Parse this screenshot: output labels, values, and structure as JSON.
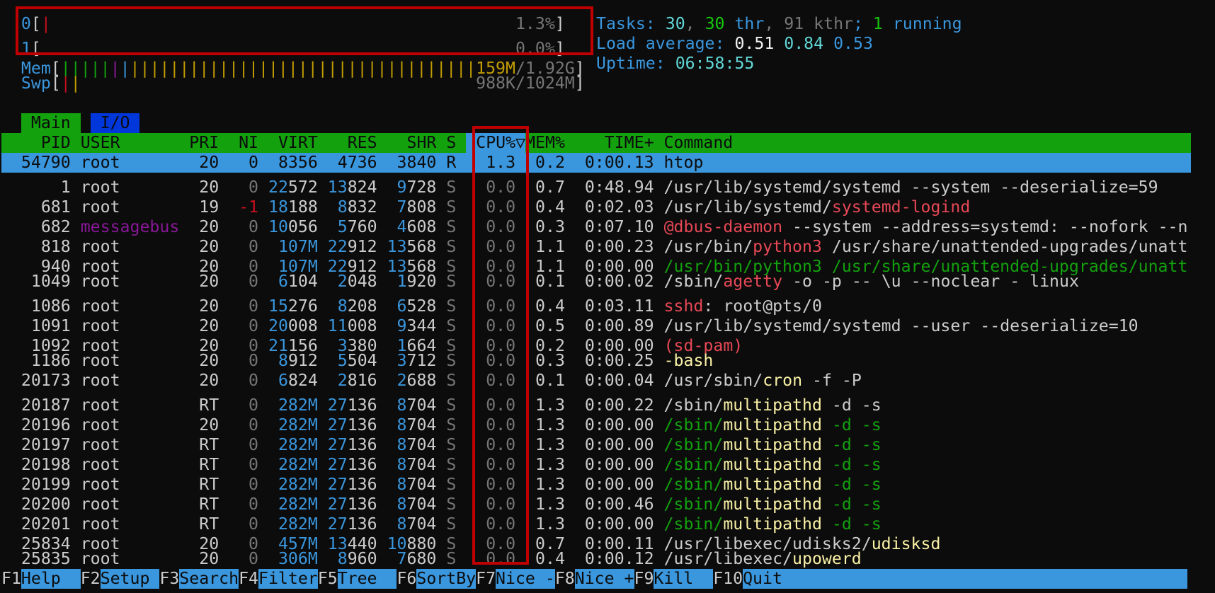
{
  "colors": {
    "bg": "#0c0c0c",
    "white": "#cccccc",
    "bright_white": "#f2f2f2",
    "gray": "#767676",
    "cyan": "#3a96dd",
    "bright_cyan": "#61d6d6",
    "green": "#13a10e",
    "bright_green": "#16c60c",
    "red": "#c50f1f",
    "bright_red": "#e74856",
    "yellow": "#c19c00",
    "bright_yellow": "#f9f1a5",
    "purple": "#881798",
    "blue": "#0037da",
    "black": "#0c0c0c",
    "highlight_box": "#c00000"
  },
  "meters": {
    "cpus": [
      {
        "id": "0",
        "percent": 1.3,
        "label": "1.3%"
      },
      {
        "id": "1",
        "percent": 0.0,
        "label": "0.0%"
      }
    ],
    "mem": {
      "label": "Mem",
      "used": "159M",
      "sep": "/",
      "total": "1.92G",
      "segments": [
        {
          "color": "green",
          "fraction": 0.096
        },
        {
          "color": "purple",
          "fraction": 0.019
        },
        {
          "color": "cyan",
          "fraction": 0.019
        },
        {
          "color": "yellow",
          "fraction": 0.673
        }
      ]
    },
    "swap": {
      "label": "Swp",
      "value": "988K/1024M",
      "segments": [
        {
          "color": "red",
          "fraction": 0.019
        },
        {
          "color": "yellow",
          "fraction": 0.019
        }
      ]
    }
  },
  "summary": {
    "tasks_label": "Tasks: ",
    "tasks": "30",
    "threads": "30",
    "threads_label": " thr",
    "kthreads": "91",
    "kthreads_label": " kthr",
    "running": "1",
    "running_label": " running",
    "load_label": "Load average: ",
    "load": [
      "0.51",
      "0.84",
      "0.53"
    ],
    "uptime_label": "Uptime: ",
    "uptime": "06:58:55"
  },
  "tabs": [
    {
      "label": "Main",
      "active": true
    },
    {
      "label": "I/O",
      "active": false
    }
  ],
  "columns": {
    "pid": "PID",
    "user": "USER",
    "pri": "PRI",
    "ni": "NI",
    "virt": "VIRT",
    "res": "RES",
    "shr": "SHR",
    "s": "S",
    "cpu": "CPU%",
    "sort_icon": "▽",
    "mem": "MEM%",
    "time": "TIME+",
    "command": "Command"
  },
  "sort_column": "CPU%",
  "processes": [
    {
      "pid": "54790",
      "user": "root",
      "pri": "20",
      "ni": "0",
      "virt": "8356",
      "res": "4736",
      "shr": "3840",
      "s": "R",
      "cpu": "1.3",
      "mem": "0.2",
      "time": "0:00.13",
      "cmd": {
        "pre": "",
        "name": "htop",
        "post": ""
      },
      "selected": true
    },
    {
      "pid": "1",
      "user": "root",
      "pri": "20",
      "ni": "0",
      "virt": "22572",
      "res": "13824",
      "shr": "9728",
      "s": "S",
      "cpu": "0.0",
      "mem": "0.7",
      "time": "0:48.94",
      "cmd": {
        "pre": "/usr/lib/systemd/systemd --system --deserialize=59",
        "name": "",
        "post": ""
      }
    },
    {
      "pid": "681",
      "user": "root",
      "pri": "19",
      "ni": "-1",
      "virt": "18188",
      "res": "8832",
      "shr": "7808",
      "s": "S",
      "cpu": "0.0",
      "mem": "0.4",
      "time": "0:02.03",
      "cmd": {
        "pre": "/usr/lib/systemd/",
        "name": "systemd-logind",
        "post": "",
        "name_color": "bright_red"
      }
    },
    {
      "pid": "682",
      "user": "messagebus",
      "pri": "20",
      "ni": "0",
      "virt": "10056",
      "res": "5760",
      "shr": "4608",
      "s": "S",
      "cpu": "0.0",
      "mem": "0.3",
      "time": "0:07.10",
      "cmd": {
        "pre": "",
        "name": "@dbus-daemon",
        "post": " --system --address=systemd: --nofork --n",
        "name_color": "bright_red"
      }
    },
    {
      "pid": "818",
      "user": "root",
      "pri": "20",
      "ni": "0",
      "virt": "107M",
      "res": "22912",
      "shr": "13568",
      "s": "S",
      "cpu": "0.0",
      "mem": "1.1",
      "time": "0:00.23",
      "cmd": {
        "pre": "/usr/bin/",
        "name": "python3",
        "post": " /usr/share/unattended-upgrades/unatt",
        "name_color": "bright_red"
      }
    },
    {
      "pid": "940",
      "user": "root",
      "pri": "20",
      "ni": "0",
      "virt": "107M",
      "res": "22912",
      "shr": "13568",
      "s": "S",
      "cpu": "0.0",
      "mem": "1.1",
      "time": "0:00.00",
      "cmd": {
        "pre": "/usr/bin/python3 /usr/share/unattended-upgrades/unatt",
        "name": "",
        "post": ""
      },
      "thread": true
    },
    {
      "pid": "1049",
      "user": "root",
      "pri": "20",
      "ni": "0",
      "virt": "6104",
      "res": "2048",
      "shr": "1920",
      "s": "S",
      "cpu": "0.0",
      "mem": "0.1",
      "time": "0:00.02",
      "cmd": {
        "pre": "/sbin/",
        "name": "agetty",
        "post": " -o -p -- \\u --noclear - linux",
        "name_color": "bright_red"
      }
    },
    {
      "pid": "1086",
      "user": "root",
      "pri": "20",
      "ni": "0",
      "virt": "15276",
      "res": "8208",
      "shr": "6528",
      "s": "S",
      "cpu": "0.0",
      "mem": "0.4",
      "time": "0:03.11",
      "cmd": {
        "pre": "",
        "name": "sshd",
        "post": ": root@pts/0",
        "name_color": "bright_red"
      }
    },
    {
      "pid": "1091",
      "user": "root",
      "pri": "20",
      "ni": "0",
      "virt": "20008",
      "res": "11008",
      "shr": "9344",
      "s": "S",
      "cpu": "0.0",
      "mem": "0.5",
      "time": "0:00.89",
      "cmd": {
        "pre": "/usr/lib/systemd/systemd --user --deserialize=10",
        "name": "",
        "post": ""
      }
    },
    {
      "pid": "1092",
      "user": "root",
      "pri": "20",
      "ni": "0",
      "virt": "21156",
      "res": "3380",
      "shr": "1664",
      "s": "S",
      "cpu": "0.0",
      "mem": "0.2",
      "time": "0:00.00",
      "cmd": {
        "pre": "",
        "name": "(sd-pam)",
        "post": "",
        "name_color": "bright_red"
      }
    },
    {
      "pid": "1186",
      "user": "root",
      "pri": "20",
      "ni": "0",
      "virt": "8912",
      "res": "5504",
      "shr": "3712",
      "s": "S",
      "cpu": "0.0",
      "mem": "0.3",
      "time": "0:00.25",
      "cmd": {
        "pre": "",
        "name": "-bash",
        "post": "",
        "name_color": "bright_yellow"
      }
    },
    {
      "pid": "20173",
      "user": "root",
      "pri": "20",
      "ni": "0",
      "virt": "6824",
      "res": "2816",
      "shr": "2688",
      "s": "S",
      "cpu": "0.0",
      "mem": "0.1",
      "time": "0:00.04",
      "cmd": {
        "pre": "/usr/sbin/",
        "name": "cron",
        "post": " -f -P",
        "name_color": "bright_yellow"
      }
    },
    {
      "pid": "20187",
      "user": "root",
      "pri": "RT",
      "ni": "0",
      "virt": "282M",
      "res": "27136",
      "shr": "8704",
      "s": "S",
      "cpu": "0.0",
      "mem": "1.3",
      "time": "0:00.22",
      "cmd": {
        "pre": "/sbin/",
        "name": "multipathd",
        "post": " -d -s",
        "name_color": "bright_yellow"
      }
    },
    {
      "pid": "20196",
      "user": "root",
      "pri": "20",
      "ni": "0",
      "virt": "282M",
      "res": "27136",
      "shr": "8704",
      "s": "S",
      "cpu": "0.0",
      "mem": "1.3",
      "time": "0:00.00",
      "cmd": {
        "pre": "/sbin/",
        "name": "multipathd",
        "post": " -d -s",
        "name_color": "bright_yellow"
      },
      "thread": true
    },
    {
      "pid": "20197",
      "user": "root",
      "pri": "RT",
      "ni": "0",
      "virt": "282M",
      "res": "27136",
      "shr": "8704",
      "s": "S",
      "cpu": "0.0",
      "mem": "1.3",
      "time": "0:00.00",
      "cmd": {
        "pre": "/sbin/",
        "name": "multipathd",
        "post": " -d -s",
        "name_color": "bright_yellow"
      },
      "thread": true
    },
    {
      "pid": "20198",
      "user": "root",
      "pri": "RT",
      "ni": "0",
      "virt": "282M",
      "res": "27136",
      "shr": "8704",
      "s": "S",
      "cpu": "0.0",
      "mem": "1.3",
      "time": "0:00.00",
      "cmd": {
        "pre": "/sbin/",
        "name": "multipathd",
        "post": " -d -s",
        "name_color": "bright_yellow"
      },
      "thread": true
    },
    {
      "pid": "20199",
      "user": "root",
      "pri": "RT",
      "ni": "0",
      "virt": "282M",
      "res": "27136",
      "shr": "8704",
      "s": "S",
      "cpu": "0.0",
      "mem": "1.3",
      "time": "0:00.00",
      "cmd": {
        "pre": "/sbin/",
        "name": "multipathd",
        "post": " -d -s",
        "name_color": "bright_yellow"
      },
      "thread": true
    },
    {
      "pid": "20200",
      "user": "root",
      "pri": "RT",
      "ni": "0",
      "virt": "282M",
      "res": "27136",
      "shr": "8704",
      "s": "S",
      "cpu": "0.0",
      "mem": "1.3",
      "time": "0:00.46",
      "cmd": {
        "pre": "/sbin/",
        "name": "multipathd",
        "post": " -d -s",
        "name_color": "bright_yellow"
      },
      "thread": true
    },
    {
      "pid": "20201",
      "user": "root",
      "pri": "RT",
      "ni": "0",
      "virt": "282M",
      "res": "27136",
      "shr": "8704",
      "s": "S",
      "cpu": "0.0",
      "mem": "1.3",
      "time": "0:00.00",
      "cmd": {
        "pre": "/sbin/",
        "name": "multipathd",
        "post": " -d -s",
        "name_color": "bright_yellow"
      },
      "thread": true
    },
    {
      "pid": "25834",
      "user": "root",
      "pri": "20",
      "ni": "0",
      "virt": "457M",
      "res": "13440",
      "shr": "10880",
      "s": "S",
      "cpu": "0.0",
      "mem": "0.7",
      "time": "0:00.11",
      "cmd": {
        "pre": "/usr/libexec/udisks2/",
        "name": "udisksd",
        "post": "",
        "name_color": "bright_yellow"
      }
    },
    {
      "pid": "25835",
      "user": "root",
      "pri": "20",
      "ni": "0",
      "virt": "306M",
      "res": "8960",
      "shr": "7680",
      "s": "S",
      "cpu": "0.0",
      "mem": "0.4",
      "time": "0:00.12",
      "cmd": {
        "pre": "/usr/libexec/",
        "name": "upowerd",
        "post": "",
        "name_color": "bright_yellow"
      }
    }
  ],
  "function_keys": [
    {
      "key": "F1",
      "label": "Help"
    },
    {
      "key": "F2",
      "label": "Setup"
    },
    {
      "key": "F3",
      "label": "Search"
    },
    {
      "key": "F4",
      "label": "Filter"
    },
    {
      "key": "F5",
      "label": "Tree"
    },
    {
      "key": "F6",
      "label": "SortBy"
    },
    {
      "key": "F7",
      "label": "Nice -"
    },
    {
      "key": "F8",
      "label": "Nice +"
    },
    {
      "key": "F9",
      "label": "Kill"
    },
    {
      "key": "F10",
      "label": "Quit"
    }
  ]
}
